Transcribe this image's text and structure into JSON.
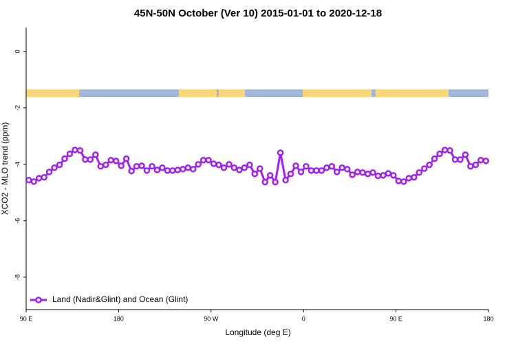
{
  "chart_data": {
    "type": "line",
    "title": "45N-50N October (Ver 10)   2015-01-01 to 2020-12-18",
    "x_label": "Longitude (deg E)",
    "y_label": "XCO2 - MLO trend (ppm)",
    "x": [
      92.5,
      97.5,
      102.5,
      107.5,
      112.5,
      117.5,
      122.5,
      127.5,
      132.5,
      137.5,
      142.5,
      147.5,
      152.5,
      157.5,
      162.5,
      167.5,
      172.5,
      177.5,
      182.5,
      187.5,
      192.5,
      197.5,
      202.5,
      207.5,
      212.5,
      217.5,
      222.5,
      227.5,
      232.5,
      237.5,
      242.5,
      247.5,
      252.5,
      257.5,
      262.5,
      267.5,
      272.5,
      277.5,
      282.5,
      287.5,
      292.5,
      297.5,
      302.5,
      307.5,
      312.5,
      317.5,
      322.5,
      327.5,
      332.5,
      337.5,
      342.5,
      347.5,
      352.5,
      357.5,
      362.5,
      367.5,
      372.5,
      377.5,
      382.5,
      387.5,
      392.5,
      397.5,
      402.5,
      407.5,
      412.5,
      417.5,
      422.5,
      427.5,
      432.5,
      437.5,
      442.5,
      447.5,
      452.5,
      457.5,
      462.5,
      467.5,
      472.5,
      477.5,
      482.5,
      487.5,
      492.5,
      497.5,
      502.5,
      507.5,
      512.5,
      517.5,
      522.5,
      527.5,
      532.5,
      537.5
    ],
    "series": [
      {
        "name": "Land (Nadir&Glint) and Ocean (Glint)",
        "color": "#a020f0",
        "values": [
          -4.56,
          -4.61,
          -4.49,
          -4.46,
          -4.27,
          -4.12,
          -4.02,
          -3.8,
          -3.63,
          -3.49,
          -3.51,
          -3.83,
          -3.83,
          -3.66,
          -4.07,
          -4.02,
          -3.85,
          -3.88,
          -4.05,
          -3.8,
          -4.24,
          -4.07,
          -4.05,
          -4.22,
          -4.07,
          -4.2,
          -4.12,
          -4.22,
          -4.22,
          -4.2,
          -4.17,
          -4.12,
          -4.17,
          -4.0,
          -3.85,
          -3.85,
          -3.98,
          -4.02,
          -4.12,
          -4.0,
          -4.12,
          -4.2,
          -4.12,
          -4.02,
          -4.34,
          -4.15,
          -4.63,
          -4.39,
          -4.63,
          -3.59,
          -4.56,
          -4.34,
          -4.05,
          -4.27,
          -4.07,
          -4.22,
          -4.22,
          -4.22,
          -4.12,
          -4.07,
          -4.27,
          -4.12,
          -4.17,
          -4.37,
          -4.27,
          -4.29,
          -4.34,
          -4.29,
          -4.41,
          -4.39,
          -4.32,
          -4.39,
          -4.59,
          -4.61,
          -4.49,
          -4.46,
          -4.29,
          -4.15,
          -4.02,
          -3.8,
          -3.63,
          -3.49,
          -3.51,
          -3.83,
          -3.83,
          -3.66,
          -4.07,
          -4.02,
          -3.85,
          -3.88
        ]
      }
    ],
    "xlim": [
      90,
      540
    ],
    "xticks": [
      {
        "value": 90,
        "label": "90 E"
      },
      {
        "value": 180,
        "label": "180"
      },
      {
        "value": 270,
        "label": "90 W"
      },
      {
        "value": 360,
        "label": "0"
      },
      {
        "value": 450,
        "label": "90 E"
      },
      {
        "value": 540,
        "label": "180"
      }
    ],
    "ylim": [
      -9.15,
      0.85
    ],
    "yticks": [
      0,
      -2,
      -4,
      -6,
      -8
    ],
    "legend": "bottom-left"
  }
}
